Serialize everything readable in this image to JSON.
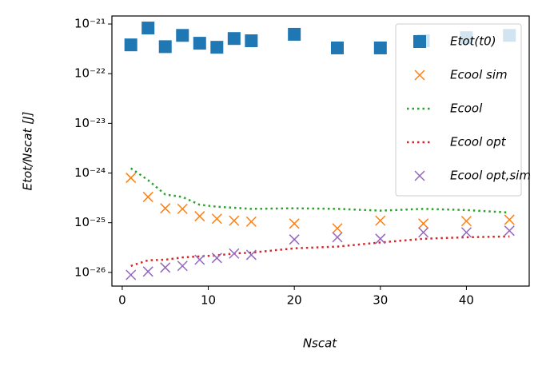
{
  "chart_data": {
    "type": "scatter",
    "log_y": true,
    "x_label": "Nscat",
    "y_label": "Etot/Nscat [J]",
    "x": [
      1,
      3,
      5,
      7,
      9,
      11,
      13,
      15,
      20,
      25,
      30,
      35,
      40,
      45
    ],
    "series": [
      {
        "name": "Etot(t0)",
        "color": "#1f77b4",
        "style": "square",
        "values": [
          3.8e-22,
          8.3e-22,
          3.5e-22,
          5.9e-22,
          4.1e-22,
          3.4e-22,
          5.1e-22,
          4.6e-22,
          6.2e-22,
          3.3e-22,
          3.3e-22,
          4.6e-22,
          5.3e-22,
          5.9e-22
        ]
      },
      {
        "name": "Ecool sim",
        "color": "#ff7f0e",
        "style": "x",
        "values": [
          8e-25,
          3.3e-25,
          1.95e-25,
          1.9e-25,
          1.35e-25,
          1.2e-25,
          1.1e-25,
          1.05e-25,
          9.6e-26,
          7.7e-26,
          1.1e-25,
          9.6e-26,
          1.08e-25,
          1.15e-25
        ]
      },
      {
        "name": "Ecool",
        "color": "#2ca02c",
        "style": "dotted",
        "values": [
          1.25e-24,
          7.2e-25,
          3.7e-25,
          3.3e-25,
          2.3e-25,
          2.1e-25,
          2e-25,
          1.9e-25,
          1.95e-25,
          1.9e-25,
          1.75e-25,
          1.9e-25,
          1.8e-25,
          1.6e-25
        ]
      },
      {
        "name": "Ecool opt",
        "color": "#d62728",
        "style": "dotted",
        "values": [
          1.35e-26,
          1.75e-26,
          1.8e-26,
          2e-26,
          2.1e-26,
          2.2e-26,
          2.4e-26,
          2.5e-26,
          3.05e-26,
          3.3e-26,
          4e-26,
          4.75e-26,
          5.1e-26,
          5.3e-26
        ]
      },
      {
        "name": "Ecool opt,sim",
        "color": "#9467bd",
        "style": "x",
        "values": [
          8.9e-27,
          1.04e-26,
          1.25e-26,
          1.35e-26,
          1.8e-26,
          1.95e-26,
          2.4e-26,
          2.25e-26,
          4.6e-26,
          5.1e-26,
          4.75e-26,
          6.4e-26,
          6.4e-26,
          6.9e-26
        ]
      }
    ],
    "xlim": [
      -1.2,
      47.3
    ],
    "xticks": [
      0,
      10,
      20,
      30,
      40
    ],
    "ylim": [
      5.3e-27,
      1.45e-21
    ],
    "yticks": [
      {
        "value": 1e-26,
        "label": "10⁻²⁶"
      },
      {
        "value": 1e-25,
        "label": "10⁻²⁵"
      },
      {
        "value": 1e-24,
        "label": "10⁻²⁴"
      },
      {
        "value": 1e-23,
        "label": "10⁻²³"
      },
      {
        "value": 1e-22,
        "label": "10⁻²²"
      },
      {
        "value": 1e-21,
        "label": "10⁻²¹"
      }
    ],
    "legend": "upper right",
    "grid": false
  }
}
